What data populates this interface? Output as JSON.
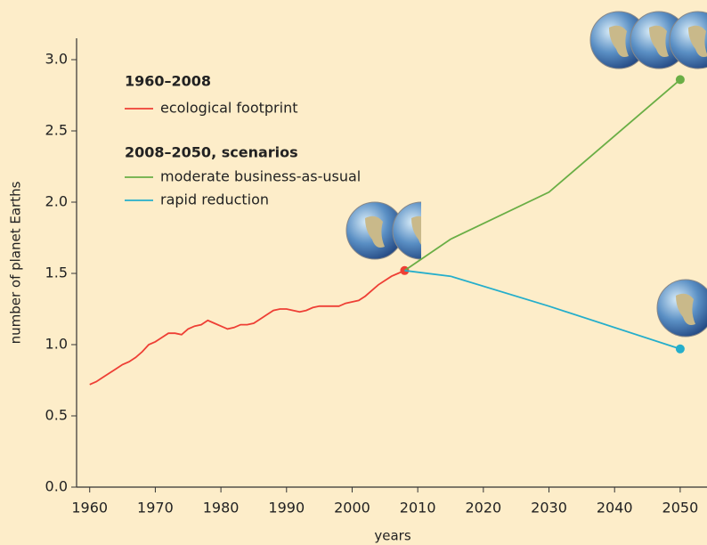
{
  "chart_data": {
    "type": "line",
    "xlabel": "years",
    "ylabel": "number of planet Earths",
    "legend_headings": [
      "1960–2008",
      "2008–2050, scenarios"
    ],
    "xlim": [
      1958,
      2053
    ],
    "ylim": [
      0,
      3.15
    ],
    "xticks": [
      1960,
      1970,
      1980,
      1990,
      2000,
      2010,
      2020,
      2030,
      2040,
      2050
    ],
    "yticks": [
      {
        "value": 0,
        "label": "0.0"
      },
      0.5,
      {
        "value": 1,
        "label": "1.0"
      },
      1.5,
      {
        "value": 2,
        "label": "2.0"
      },
      2.5,
      {
        "value": 3,
        "label": "3.0"
      }
    ],
    "series": [
      {
        "name": "ecological footprint",
        "color": "#ee3f35",
        "x": [
          1960,
          1961,
          1962,
          1963,
          1964,
          1965,
          1966,
          1967,
          1968,
          1969,
          1970,
          1971,
          1972,
          1973,
          1974,
          1975,
          1976,
          1977,
          1978,
          1979,
          1980,
          1981,
          1982,
          1983,
          1984,
          1985,
          1986,
          1987,
          1988,
          1989,
          1990,
          1991,
          1992,
          1993,
          1994,
          1995,
          1996,
          1997,
          1998,
          1999,
          2000,
          2001,
          2002,
          2003,
          2004,
          2005,
          2006,
          2007,
          2008
        ],
        "values": [
          0.72,
          0.74,
          0.77,
          0.8,
          0.83,
          0.86,
          0.88,
          0.91,
          0.95,
          1.0,
          1.02,
          1.05,
          1.08,
          1.08,
          1.07,
          1.11,
          1.13,
          1.14,
          1.17,
          1.15,
          1.13,
          1.11,
          1.12,
          1.14,
          1.14,
          1.15,
          1.18,
          1.21,
          1.24,
          1.25,
          1.25,
          1.24,
          1.23,
          1.24,
          1.26,
          1.27,
          1.27,
          1.27,
          1.27,
          1.29,
          1.3,
          1.31,
          1.34,
          1.38,
          1.42,
          1.45,
          1.48,
          1.5,
          1.52
        ]
      },
      {
        "name": "moderate business-as-usual",
        "color": "#6aae45",
        "x": [
          2008,
          2015,
          2030,
          2050
        ],
        "values": [
          1.52,
          1.74,
          2.07,
          2.86
        ]
      },
      {
        "name": "rapid reduction",
        "color": "#25aecb",
        "x": [
          2008,
          2015,
          2030,
          2050
        ],
        "values": [
          1.52,
          1.48,
          1.27,
          0.97
        ]
      }
    ]
  }
}
